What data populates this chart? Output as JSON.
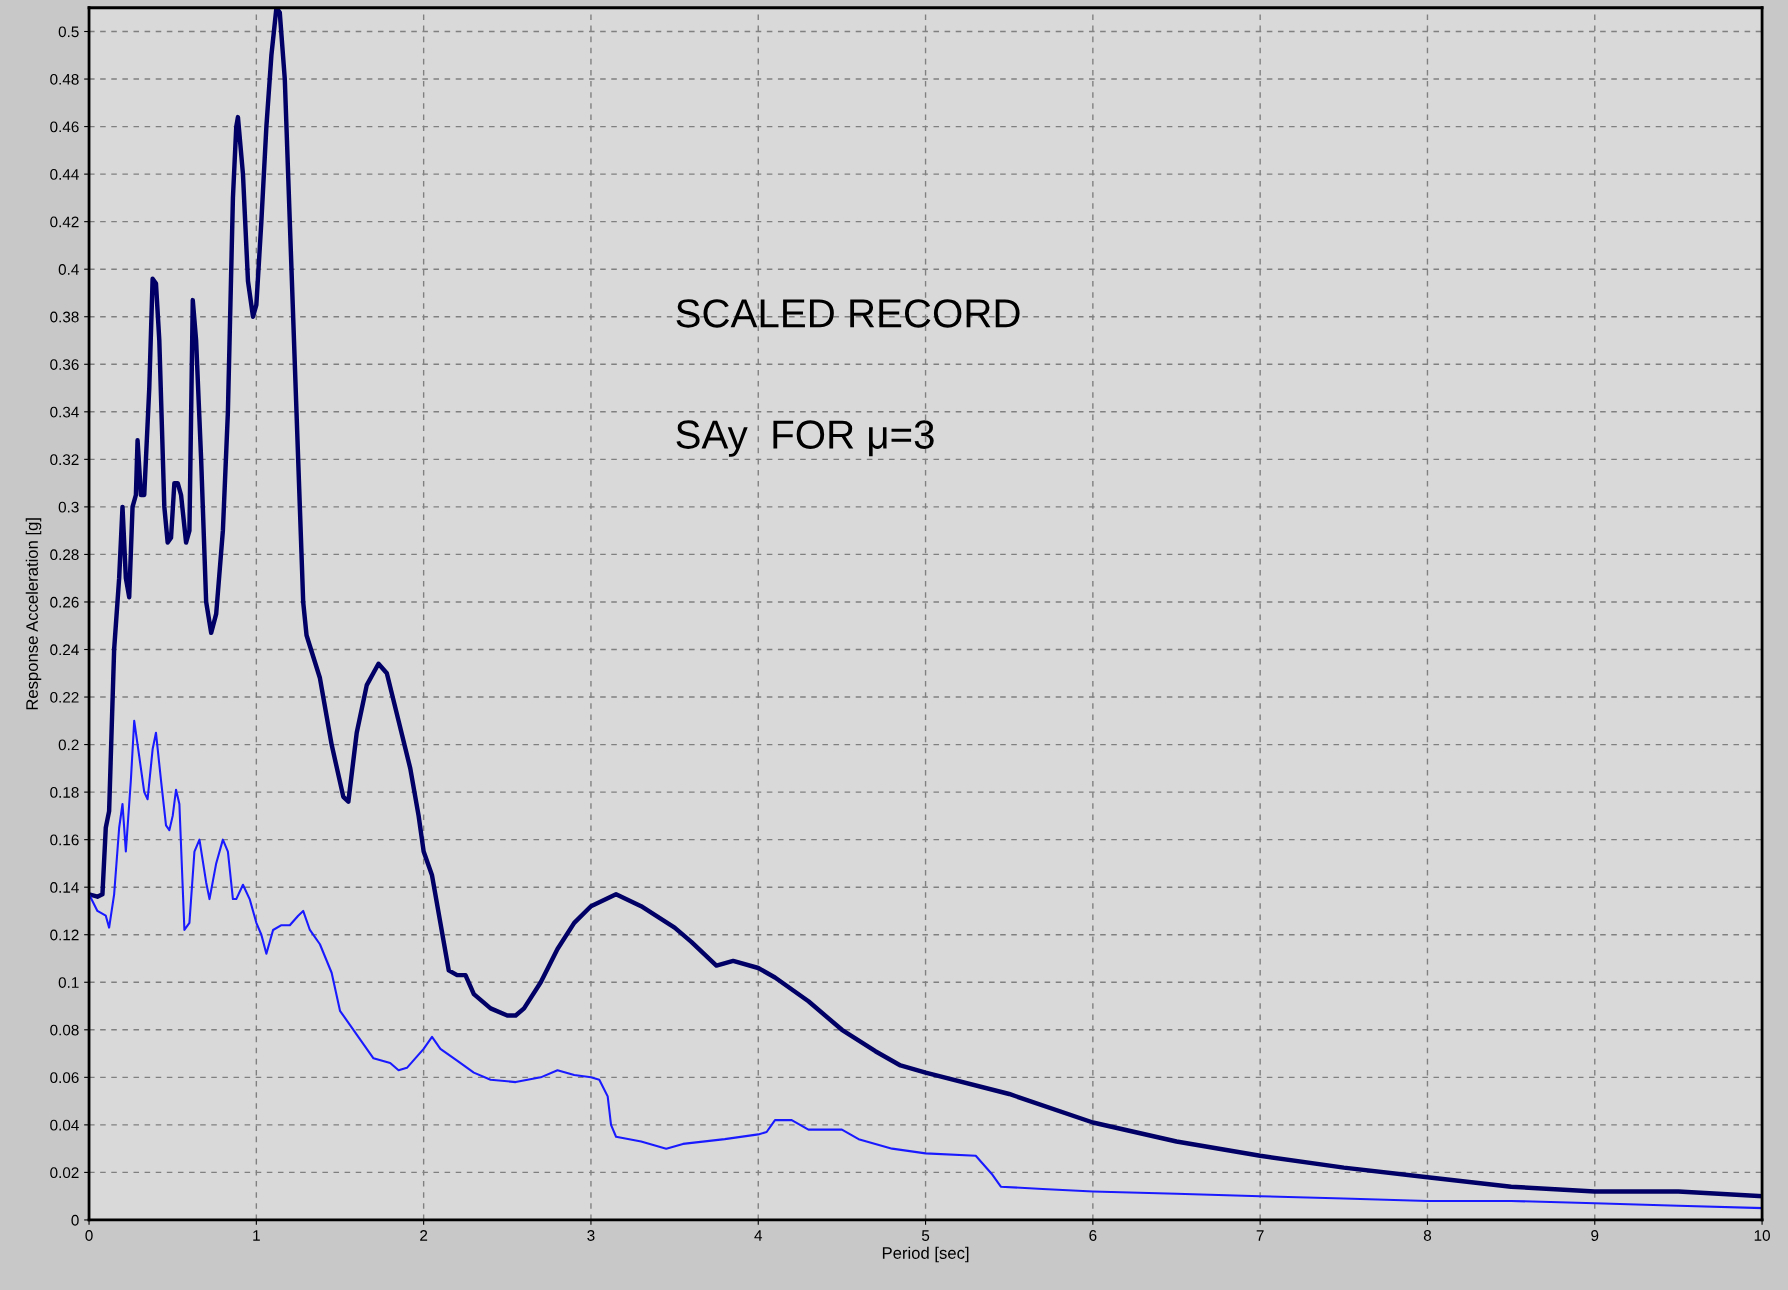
{
  "chart_data": {
    "type": "line",
    "xlabel": "Period [sec]",
    "ylabel": "Response Acceleration [g]",
    "annotations": [
      "SCALED RECORD",
      "SAy  FOR μ=3"
    ],
    "xlim": [
      0,
      10
    ],
    "xticks": [
      0,
      1,
      2,
      3,
      4,
      5,
      6,
      7,
      8,
      9,
      10
    ],
    "ylim": [
      0,
      0.51
    ],
    "yticks": [
      0,
      0.02,
      0.04,
      0.06,
      0.08,
      0.1,
      0.12,
      0.14,
      0.16,
      0.18,
      0.2,
      0.22,
      0.24,
      0.26,
      0.28,
      0.3,
      0.32,
      0.34,
      0.36,
      0.38,
      0.4,
      0.42,
      0.44,
      0.46,
      0.48,
      0.5
    ],
    "grid": true,
    "line_style": "solid",
    "marker": "none",
    "series": [
      {
        "color": "#000066",
        "x": [
          0,
          0.05,
          0.08,
          0.1,
          0.12,
          0.15,
          0.18,
          0.2,
          0.22,
          0.24,
          0.26,
          0.28,
          0.29,
          0.31,
          0.33,
          0.36,
          0.38,
          0.4,
          0.42,
          0.45,
          0.47,
          0.49,
          0.51,
          0.53,
          0.55,
          0.58,
          0.6,
          0.62,
          0.64,
          0.67,
          0.7,
          0.73,
          0.76,
          0.8,
          0.83,
          0.86,
          0.88,
          0.89,
          0.92,
          0.95,
          0.98,
          1.0,
          1.03,
          1.06,
          1.09,
          1.12,
          1.14,
          1.17,
          1.21,
          1.25,
          1.28,
          1.3,
          1.38,
          1.45,
          1.52,
          1.55,
          1.6,
          1.66,
          1.73,
          1.78,
          1.85,
          1.92,
          1.97,
          2.0,
          2.05,
          2.1,
          2.15,
          2.2,
          2.25,
          2.3,
          2.4,
          2.5,
          2.55,
          2.6,
          2.7,
          2.8,
          2.9,
          3.0,
          3.15,
          3.3,
          3.5,
          3.6,
          3.75,
          3.85,
          4.0,
          4.1,
          4.3,
          4.5,
          4.7,
          4.85,
          5.0,
          5.5,
          6.0,
          6.5,
          7.0,
          7.5,
          8.0,
          8.5,
          9.0,
          9.5,
          10.0
        ],
        "values": [
          0.137,
          0.136,
          0.137,
          0.165,
          0.172,
          0.24,
          0.27,
          0.3,
          0.27,
          0.262,
          0.3,
          0.305,
          0.328,
          0.305,
          0.305,
          0.35,
          0.396,
          0.394,
          0.37,
          0.3,
          0.285,
          0.287,
          0.31,
          0.31,
          0.305,
          0.285,
          0.29,
          0.387,
          0.37,
          0.32,
          0.26,
          0.247,
          0.255,
          0.29,
          0.34,
          0.43,
          0.46,
          0.464,
          0.44,
          0.395,
          0.38,
          0.385,
          0.42,
          0.46,
          0.49,
          0.51,
          0.508,
          0.48,
          0.4,
          0.32,
          0.26,
          0.246,
          0.228,
          0.2,
          0.178,
          0.176,
          0.205,
          0.225,
          0.234,
          0.23,
          0.21,
          0.19,
          0.17,
          0.155,
          0.145,
          0.125,
          0.105,
          0.103,
          0.103,
          0.095,
          0.089,
          0.086,
          0.086,
          0.089,
          0.1,
          0.114,
          0.125,
          0.132,
          0.137,
          0.132,
          0.123,
          0.117,
          0.107,
          0.109,
          0.106,
          0.102,
          0.092,
          0.08,
          0.071,
          0.065,
          0.062,
          0.053,
          0.041,
          0.033,
          0.027,
          0.022,
          0.018,
          0.014,
          0.012,
          0.012,
          0.01
        ]
      },
      {
        "color": "#1a1aff",
        "x": [
          0,
          0.05,
          0.1,
          0.12,
          0.15,
          0.18,
          0.2,
          0.22,
          0.25,
          0.27,
          0.3,
          0.33,
          0.35,
          0.38,
          0.4,
          0.43,
          0.46,
          0.48,
          0.5,
          0.52,
          0.54,
          0.57,
          0.6,
          0.63,
          0.66,
          0.7,
          0.72,
          0.76,
          0.8,
          0.83,
          0.86,
          0.88,
          0.92,
          0.96,
          1.0,
          1.03,
          1.06,
          1.1,
          1.15,
          1.2,
          1.25,
          1.28,
          1.32,
          1.38,
          1.45,
          1.5,
          1.6,
          1.7,
          1.8,
          1.85,
          1.9,
          1.95,
          2.0,
          2.05,
          2.1,
          2.2,
          2.3,
          2.4,
          2.55,
          2.7,
          2.8,
          2.9,
          3.0,
          3.05,
          3.1,
          3.12,
          3.15,
          3.3,
          3.45,
          3.55,
          3.8,
          4.0,
          4.05,
          4.1,
          4.2,
          4.3,
          4.5,
          4.6,
          4.8,
          5.0,
          5.3,
          5.4,
          5.45,
          5.7,
          6.0,
          6.5,
          7.0,
          7.5,
          8.0,
          8.5,
          9.0,
          9.5,
          10.0
        ],
        "values": [
          0.137,
          0.13,
          0.128,
          0.123,
          0.137,
          0.165,
          0.175,
          0.155,
          0.185,
          0.21,
          0.195,
          0.18,
          0.177,
          0.198,
          0.205,
          0.185,
          0.166,
          0.164,
          0.17,
          0.181,
          0.175,
          0.122,
          0.125,
          0.155,
          0.16,
          0.142,
          0.135,
          0.15,
          0.16,
          0.155,
          0.135,
          0.135,
          0.141,
          0.135,
          0.125,
          0.12,
          0.112,
          0.122,
          0.124,
          0.124,
          0.128,
          0.13,
          0.122,
          0.116,
          0.104,
          0.088,
          0.078,
          0.068,
          0.066,
          0.063,
          0.064,
          0.068,
          0.072,
          0.077,
          0.072,
          0.067,
          0.062,
          0.059,
          0.058,
          0.06,
          0.063,
          0.061,
          0.06,
          0.059,
          0.052,
          0.04,
          0.035,
          0.033,
          0.03,
          0.032,
          0.034,
          0.036,
          0.037,
          0.042,
          0.042,
          0.038,
          0.038,
          0.034,
          0.03,
          0.028,
          0.027,
          0.019,
          0.014,
          0.013,
          0.012,
          0.011,
          0.01,
          0.009,
          0.008,
          0.008,
          0.007,
          0.006,
          0.005
        ]
      }
    ]
  }
}
